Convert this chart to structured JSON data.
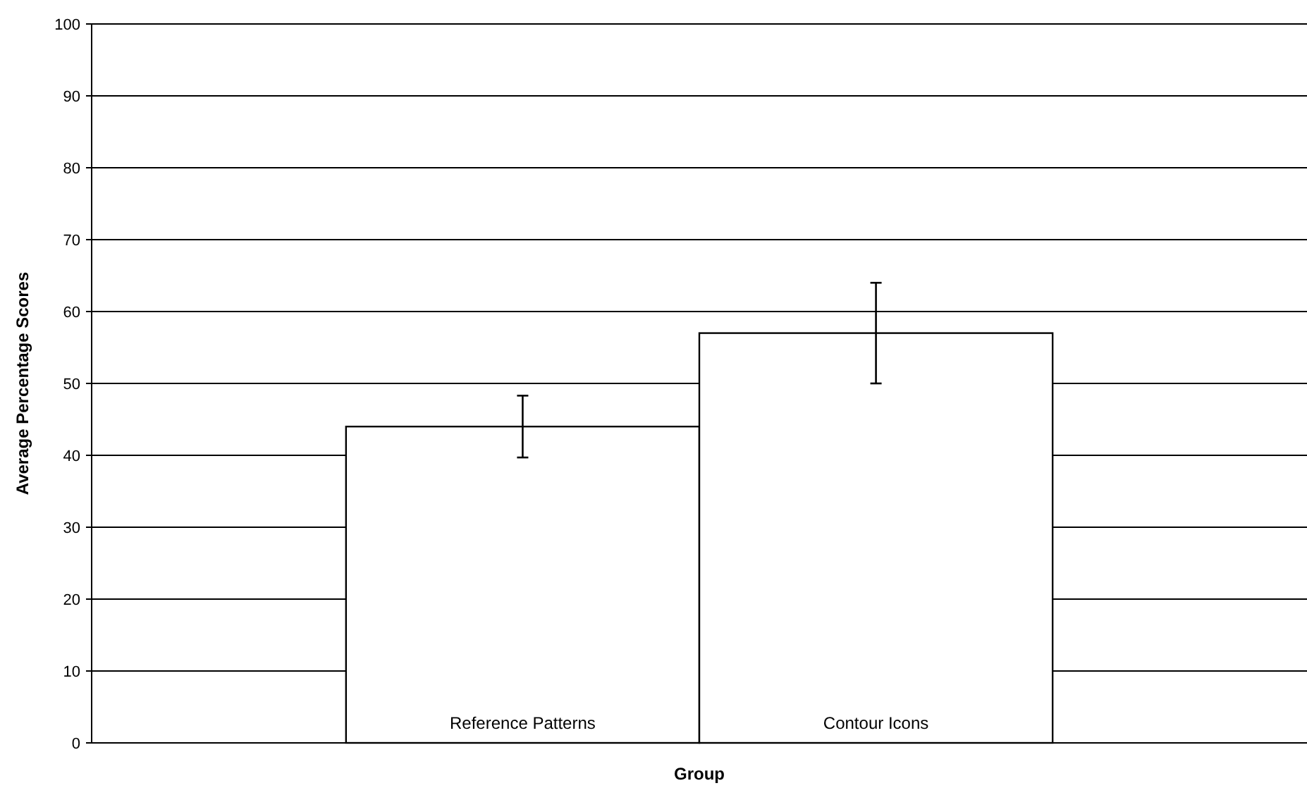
{
  "chart_data": {
    "type": "bar",
    "xlabel": "Group",
    "ylabel": "Average Percentage Scores",
    "categories": [
      "Reference Patterns",
      "Contour Icons"
    ],
    "values": [
      44,
      57
    ],
    "errors": [
      4.3,
      7
    ],
    "color": "#ffffff",
    "ylim": [
      0,
      100
    ],
    "yticks": [
      0,
      10,
      20,
      30,
      40,
      50,
      60,
      70,
      80,
      90,
      100
    ],
    "grid": "y"
  }
}
